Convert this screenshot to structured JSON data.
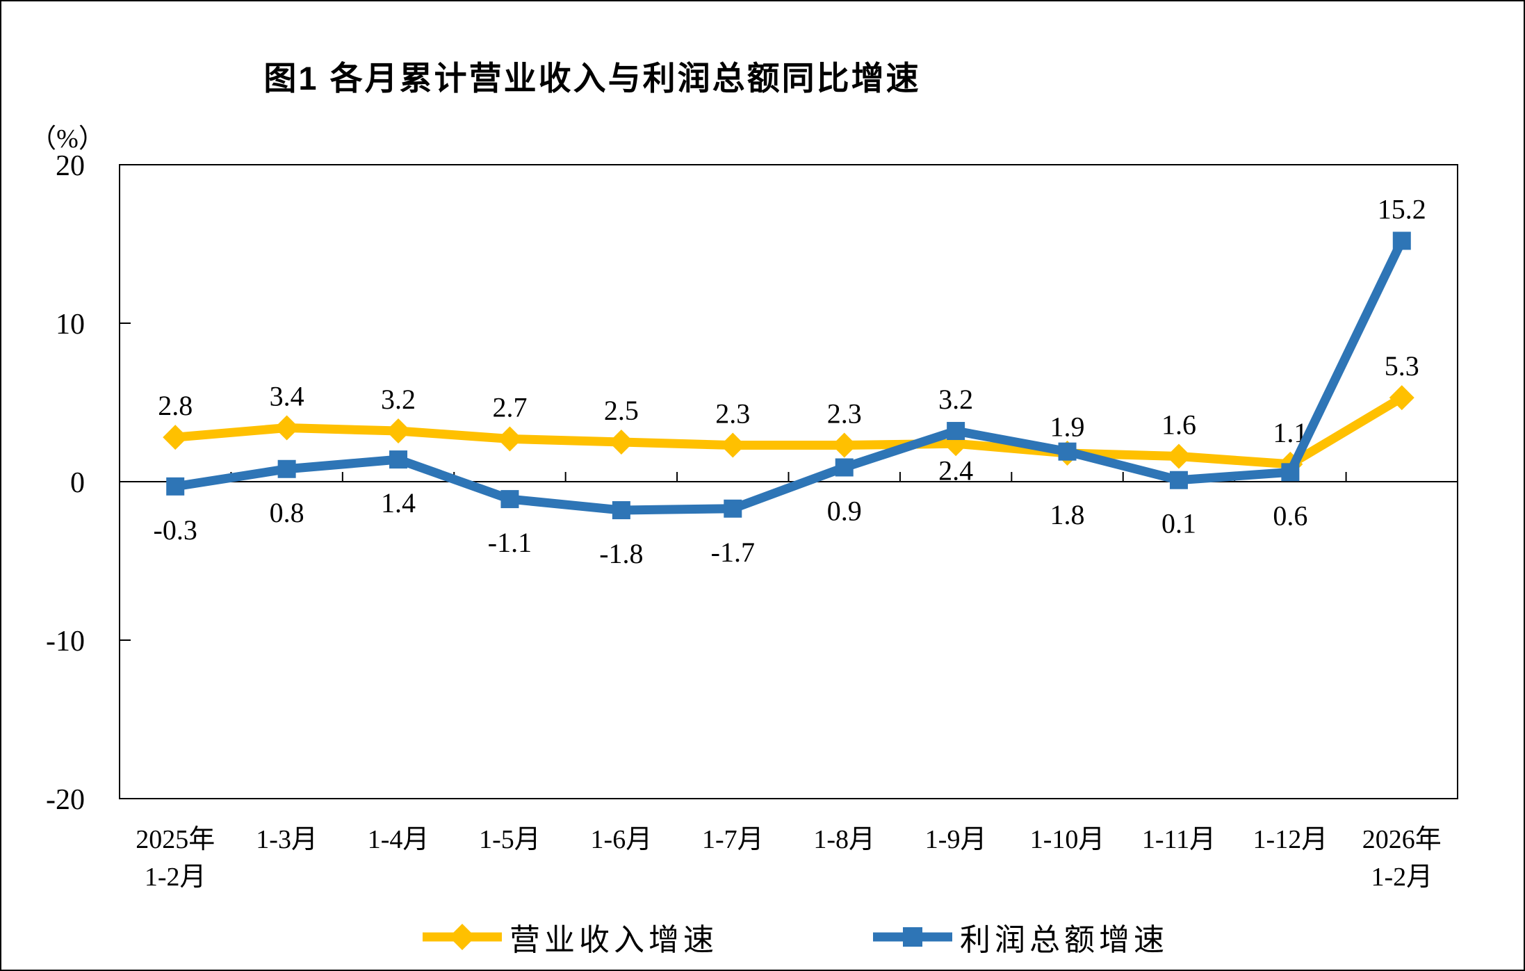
{
  "page": {
    "background": "#ffffff",
    "border_color": "#000000"
  },
  "chart_data": {
    "type": "line",
    "title": "图1  各月累计营业收入与利润总额同比增速",
    "ylabel": "（%）",
    "xlabel": "",
    "ylim": [
      -20,
      20
    ],
    "yticks": [
      20,
      10,
      0,
      -10,
      -20
    ],
    "grid": false,
    "legend_position": "bottom",
    "categories": [
      [
        "2025年",
        "1-2月"
      ],
      [
        "1-3月"
      ],
      [
        "1-4月"
      ],
      [
        "1-5月"
      ],
      [
        "1-6月"
      ],
      [
        "1-7月"
      ],
      [
        "1-8月"
      ],
      [
        "1-9月"
      ],
      [
        "1-10月"
      ],
      [
        "1-11月"
      ],
      [
        "1-12月"
      ],
      [
        "2026年",
        "1-2月"
      ]
    ],
    "series": [
      {
        "name": "营业收入增速",
        "color": "#FFC000",
        "marker": "diamond",
        "values": [
          2.8,
          3.4,
          3.2,
          2.7,
          2.5,
          2.3,
          2.3,
          2.4,
          1.8,
          1.6,
          1.1,
          5.3
        ],
        "label_side": [
          "above",
          "above",
          "above",
          "above",
          "above",
          "above",
          "above",
          "below",
          "below",
          "above",
          "above",
          "above"
        ]
      },
      {
        "name": "利润总额增速",
        "color": "#2E75B6",
        "marker": "square",
        "values": [
          -0.3,
          0.8,
          1.4,
          -1.1,
          -1.8,
          -1.7,
          0.9,
          3.2,
          1.9,
          0.1,
          0.6,
          15.2
        ],
        "label_side": [
          "below",
          "below",
          "below",
          "below",
          "below",
          "below",
          "below",
          "above",
          "above",
          "below",
          "below",
          "above"
        ]
      }
    ]
  }
}
